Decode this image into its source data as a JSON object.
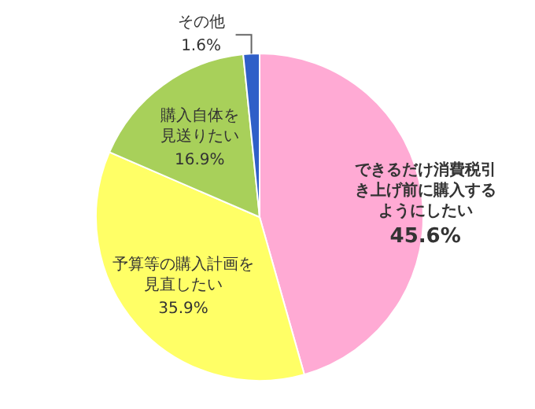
{
  "chart_data": {
    "type": "pie",
    "categories": [
      "できるだけ消費税引き上げ前に購入するようにしたい",
      "予算等の購入計画を見直したい",
      "購入自体を見送りたい",
      "その他"
    ],
    "values": [
      45.6,
      35.9,
      16.9,
      1.6
    ],
    "value_labels": [
      "45.6%",
      "35.9%",
      "16.9%",
      "1.6%"
    ],
    "colors": [
      "#ffaad4",
      "#ffff66",
      "#a8d05a",
      "#2f5fc8"
    ]
  }
}
